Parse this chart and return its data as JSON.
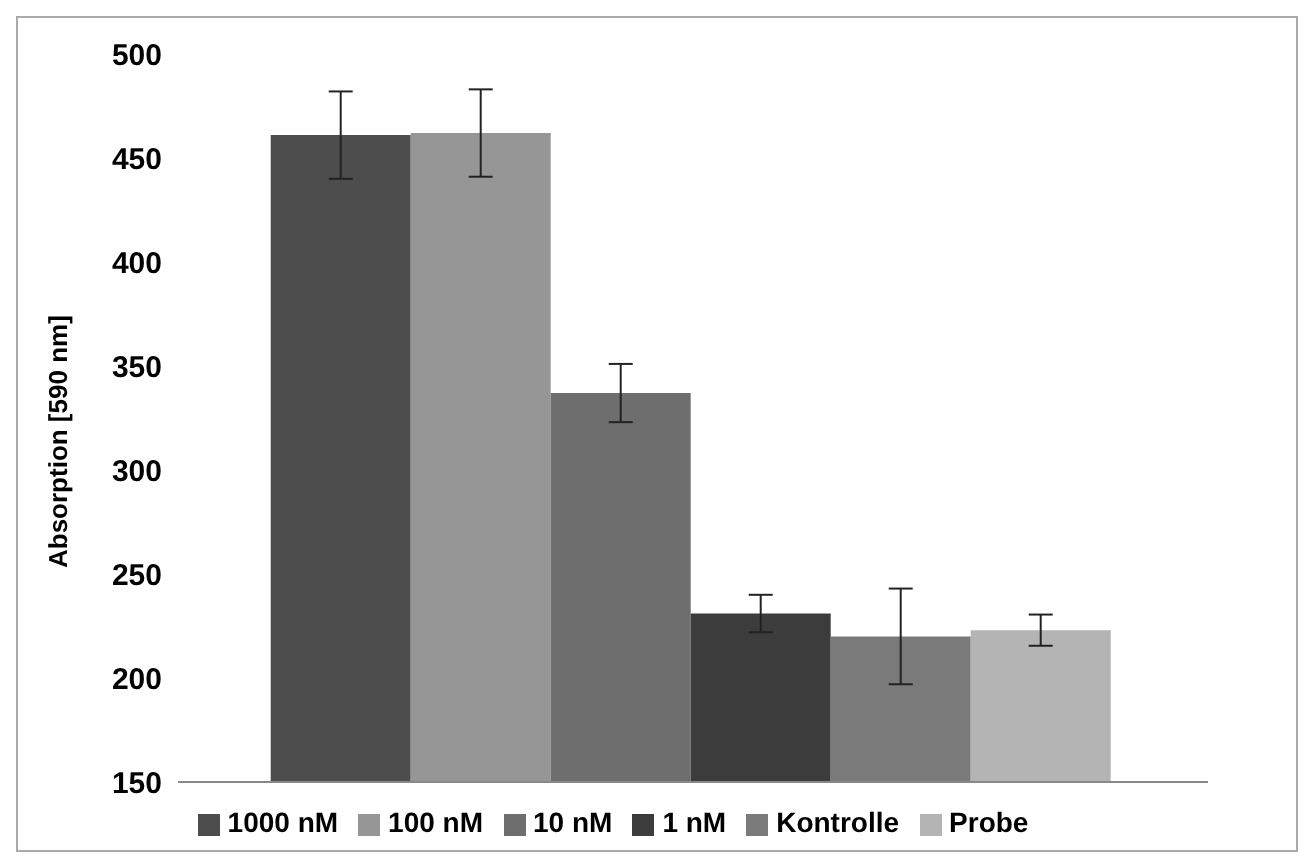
{
  "chart_data": {
    "type": "bar",
    "ylabel": "Absorption [590 nm]",
    "categories": [
      null
    ],
    "series": [
      {
        "name": "1000 nM",
        "color": "#4d4d4d",
        "values": [
          461
        ],
        "errors": [
          21
        ]
      },
      {
        "name": "100 nM",
        "color": "#969696",
        "values": [
          462
        ],
        "errors": [
          21
        ]
      },
      {
        "name": "10 nM",
        "color": "#6e6e6e",
        "values": [
          337
        ],
        "errors": [
          14
        ]
      },
      {
        "name": "1 nM",
        "color": "#3c3c3c",
        "values": [
          231
        ],
        "errors": [
          9
        ]
      },
      {
        "name": "Kontrolle",
        "color": "#7a7a7a",
        "values": [
          220
        ],
        "errors": [
          23
        ]
      },
      {
        "name": "Probe",
        "color": "#b4b4b4",
        "values": [
          223
        ],
        "errors": [
          7.5
        ]
      }
    ],
    "ylim": [
      150,
      500
    ],
    "yticks": [
      150,
      200,
      250,
      300,
      350,
      400,
      450,
      500
    ],
    "legend": "bottom",
    "grid": false
  }
}
